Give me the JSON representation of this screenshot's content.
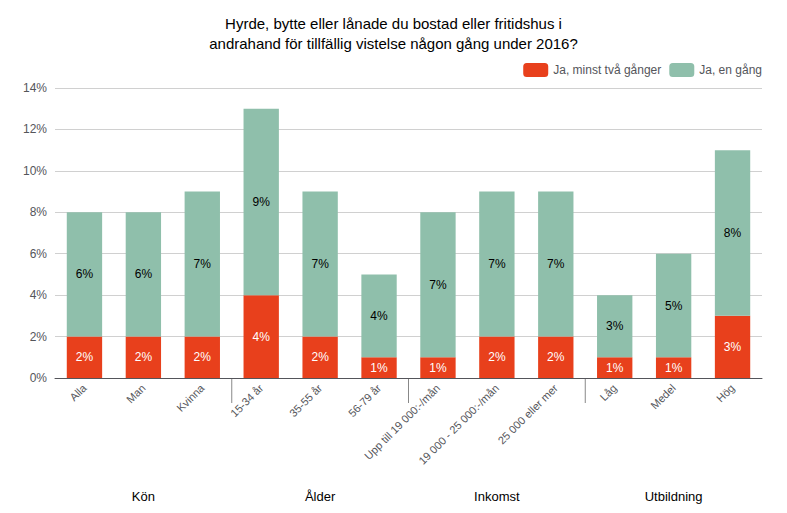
{
  "chart_data": {
    "type": "bar",
    "title": "Hyrde, bytte eller lånade du bostad eller fritidshus i\nandrahand för tillfällig vistelse någon gång under 2016?",
    "categories": [
      "Alla",
      "Man",
      "Kvinna",
      "15-34 år",
      "35-55 år",
      "56-79 år",
      "Upp till 19 000:-/mån",
      "19 000 - 25 000:-/mån",
      "25 000 eller mer",
      "Låg",
      "Medel",
      "Hög"
    ],
    "series": [
      {
        "name": "Ja, minst två gånger",
        "color": "#e8401c",
        "values": [
          2,
          2,
          2,
          4,
          2,
          1,
          1,
          2,
          2,
          1,
          1,
          3
        ],
        "value_labels": [
          "2%",
          "2%",
          "2%",
          "4%",
          "2%",
          "1%",
          "1%",
          "2%",
          "2%",
          "1%",
          "1%",
          "3%"
        ]
      },
      {
        "name": "Ja, en gång",
        "color": "#8fbfab",
        "values": [
          6,
          6,
          7,
          9,
          7,
          4,
          7,
          7,
          7,
          3,
          5,
          8
        ],
        "value_labels": [
          "6%",
          "6%",
          "7%",
          "9%",
          "7%",
          "4%",
          "7%",
          "7%",
          "7%",
          "3%",
          "5%",
          "8%"
        ]
      }
    ],
    "groups": [
      {
        "label": "Kön",
        "categories": [
          "Alla",
          "Man",
          "Kvinna"
        ]
      },
      {
        "label": "Ålder",
        "categories": [
          "15-34 år",
          "35-55 år",
          "56-79 år"
        ]
      },
      {
        "label": "Inkomst",
        "categories": [
          "Upp till 19 000:-/mån",
          "19 000 - 25 000:-/mån",
          "25 000 eller mer"
        ]
      },
      {
        "label": "Utbildning",
        "categories": [
          "Låg",
          "Medel",
          "Hög"
        ]
      }
    ],
    "stacked": true,
    "data_labels": true,
    "ylim": [
      0,
      14
    ],
    "yticks": [
      {
        "value": 0,
        "label": "0%"
      },
      {
        "value": 2,
        "label": "2%"
      },
      {
        "value": 4,
        "label": "4%"
      },
      {
        "value": 6,
        "label": "6%"
      },
      {
        "value": 8,
        "label": "8%"
      },
      {
        "value": 10,
        "label": "10%"
      },
      {
        "value": 12,
        "label": "12%"
      },
      {
        "value": 14,
        "label": "14%"
      }
    ],
    "grid": true,
    "legend": "upper right"
  }
}
